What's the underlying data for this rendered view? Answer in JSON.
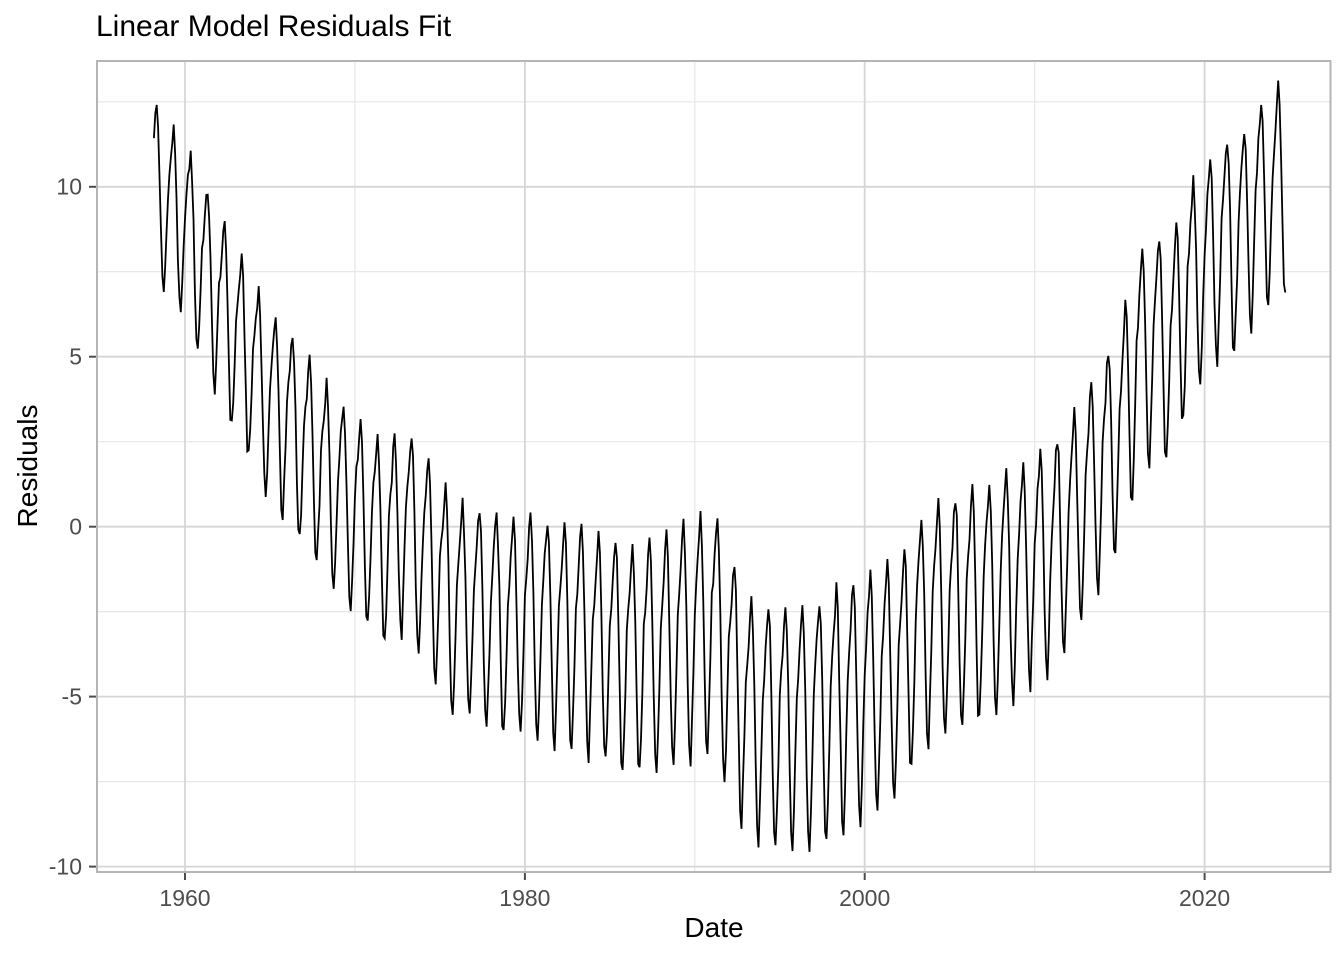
{
  "page": {
    "title": "Linear Model Residuals Fit"
  },
  "chart_data": {
    "type": "line",
    "title": "Linear Model Residuals Fit",
    "xlabel": "Date",
    "ylabel": "Residuals",
    "x_domain": [
      1954.82,
      2027.41
    ],
    "y_domain": [
      -10.16,
      13.7
    ],
    "x_ticks": [
      1960,
      1980,
      2000,
      2020
    ],
    "x_minor_ticks": [
      1970,
      1990,
      2010
    ],
    "y_ticks": [
      -10,
      -5,
      0,
      5,
      10
    ],
    "y_minor_ticks": [
      -7.5,
      -2.5,
      2.5,
      7.5,
      12.5
    ],
    "grid": true,
    "legend": false,
    "colors": {
      "line": "#000000",
      "grid_major": "#d6d6d6",
      "grid_minor": "#e7e7e7",
      "panel_border": "#b5b5b5",
      "tick_mark": "#4d4d4d",
      "axis_text": "#4d4d4d",
      "title_text": "#000000",
      "background": "#ffffff"
    },
    "series": [
      {
        "name": "Residuals",
        "color": "#000000",
        "line_width": 1.8,
        "start_year": 1958.1667,
        "start_month_index": 2,
        "end_year": 2024.75,
        "points_per_year": 12,
        "trend_points": [
          [
            1958,
            10.1
          ],
          [
            1959,
            9.3
          ],
          [
            1960,
            8.7
          ],
          [
            1961,
            7.6
          ],
          [
            1962,
            6.5
          ],
          [
            1963,
            5.4
          ],
          [
            1964,
            4.6
          ],
          [
            1965,
            3.5
          ],
          [
            1966,
            3.0
          ],
          [
            1967,
            2.3
          ],
          [
            1968,
            1.5
          ],
          [
            1969,
            0.9
          ],
          [
            1970,
            0.4
          ],
          [
            1971,
            -0.1
          ],
          [
            1972,
            -0.5
          ],
          [
            1973,
            0.0
          ],
          [
            1974,
            -0.9
          ],
          [
            1975,
            -1.7
          ],
          [
            1976,
            -2.4
          ],
          [
            1977,
            -2.5
          ],
          [
            1978,
            -2.8
          ],
          [
            1979,
            -2.9
          ],
          [
            1980,
            -2.8
          ],
          [
            1981,
            -2.9
          ],
          [
            1982,
            -3.2
          ],
          [
            1983,
            -3.2
          ],
          [
            1984,
            -3.5
          ],
          [
            1985,
            -3.6
          ],
          [
            1986,
            -3.9
          ],
          [
            1987,
            -3.8
          ],
          [
            1988,
            -3.7
          ],
          [
            1989,
            -3.5
          ],
          [
            1990,
            -3.3
          ],
          [
            1991,
            -2.9
          ],
          [
            1992,
            -4.2
          ],
          [
            1993,
            -5.5
          ],
          [
            1994,
            -5.9
          ],
          [
            1995,
            -5.9
          ],
          [
            1996,
            -5.8
          ],
          [
            1997,
            -5.8
          ],
          [
            1998,
            -5.5
          ],
          [
            1999,
            -5.2
          ],
          [
            2000,
            -5.0
          ],
          [
            2001,
            -4.7
          ],
          [
            2002,
            -4.4
          ],
          [
            2003,
            -3.4
          ],
          [
            2004,
            -2.7
          ],
          [
            2005,
            -2.7
          ],
          [
            2006,
            -2.4
          ],
          [
            2007,
            -2.2
          ],
          [
            2008,
            -1.9
          ],
          [
            2009,
            -1.6
          ],
          [
            2010,
            -1.2
          ],
          [
            2011,
            -0.9
          ],
          [
            2012,
            -0.2
          ],
          [
            2013,
            0.7
          ],
          [
            2014,
            1.6
          ],
          [
            2015,
            2.7
          ],
          [
            2016,
            4.6
          ],
          [
            2017,
            5.3
          ],
          [
            2018,
            5.1
          ],
          [
            2019,
            6.8
          ],
          [
            2020,
            7.5
          ],
          [
            2021,
            8.2
          ],
          [
            2022,
            8.3
          ],
          [
            2023,
            9.3
          ],
          [
            2024,
            9.8
          ],
          [
            2024.8,
            10.0
          ]
        ],
        "seasonal_pattern": [
          0.7,
          1.35,
          2.05,
          2.75,
          3.25,
          2.55,
          0.9,
          -1.25,
          -2.95,
          -3.3,
          -2.25,
          -0.85
        ],
        "amplitude_points": [
          [
            1958,
            0.78
          ],
          [
            1966,
            0.86
          ],
          [
            1974,
            0.93
          ],
          [
            1982,
            1.0
          ],
          [
            1990,
            1.07
          ],
          [
            1999,
            1.1
          ],
          [
            2008,
            1.04
          ],
          [
            2016,
            0.98
          ],
          [
            2024.8,
            0.95
          ]
        ],
        "noise_amplitude": 0.22
      }
    ]
  }
}
